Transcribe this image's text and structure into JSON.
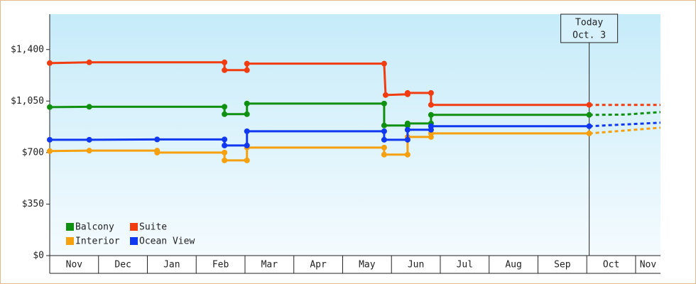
{
  "chart_data": {
    "type": "step-line",
    "categories": [
      "Nov",
      "Dec",
      "Jan",
      "Feb",
      "Mar",
      "Apr",
      "May",
      "Jun",
      "Jul",
      "Aug",
      "Sep",
      "Oct",
      "Nov"
    ],
    "xlim": [
      0,
      12.51
    ],
    "ylim": [
      0,
      1640
    ],
    "yticks": [
      {
        "value": 0,
        "label": "$0"
      },
      {
        "value": 350,
        "label": "$350"
      },
      {
        "value": 700,
        "label": "$700"
      },
      {
        "value": 1050,
        "label": "$1,050"
      },
      {
        "value": 1400,
        "label": "$1,400"
      }
    ],
    "annotation": {
      "x": 11.05,
      "lines": [
        "Today",
        "Oct. 3"
      ]
    },
    "series": [
      {
        "name": "Balcony",
        "color": "#109010",
        "x": [
          0,
          0.81,
          3.58,
          3.58,
          4.04,
          4.04,
          6.85,
          6.85,
          7.33,
          7.33,
          7.81,
          7.81,
          11.05
        ],
        "values": [
          1009,
          1011,
          1011,
          961,
          961,
          1033,
          1033,
          884,
          884,
          898,
          898,
          956,
          956
        ],
        "projection_x": [
          11.05,
          11.78,
          12.51
        ],
        "projection_values": [
          956,
          958,
          975
        ]
      },
      {
        "name": "Suite",
        "color": "#f03c10",
        "x": [
          0,
          0.81,
          3.58,
          3.58,
          4.04,
          4.04,
          6.85,
          6.88,
          7.33,
          7.33,
          7.81,
          7.81,
          11.05
        ],
        "values": [
          1308,
          1313,
          1313,
          1260,
          1260,
          1304,
          1304,
          1091,
          1096,
          1105,
          1105,
          1024,
          1024
        ],
        "projection_x": [
          11.05,
          12.51
        ],
        "projection_values": [
          1024,
          1024
        ]
      },
      {
        "name": "Interior",
        "color": "#f5a00f",
        "x": [
          0,
          0.81,
          2.2,
          2.2,
          3.58,
          3.58,
          4.04,
          4.04,
          6.85,
          6.85,
          7.33,
          7.33,
          7.81,
          7.81,
          11.05
        ],
        "values": [
          710,
          713,
          713,
          700,
          700,
          647,
          647,
          734,
          734,
          686,
          686,
          806,
          806,
          830,
          830
        ],
        "projection_x": [
          11.05,
          12.51
        ],
        "projection_values": [
          830,
          869
        ]
      },
      {
        "name": "Ocean View",
        "color": "#1038f0",
        "x": [
          0,
          0.81,
          2.2,
          3.58,
          3.58,
          4.04,
          4.04,
          6.85,
          6.85,
          7.33,
          7.33,
          7.81,
          7.81,
          11.05
        ],
        "values": [
          787,
          787,
          789,
          789,
          748,
          748,
          845,
          845,
          787,
          787,
          855,
          855,
          879,
          879
        ],
        "projection_x": [
          11.05,
          12.51
        ],
        "projection_values": [
          879,
          903
        ]
      }
    ]
  }
}
